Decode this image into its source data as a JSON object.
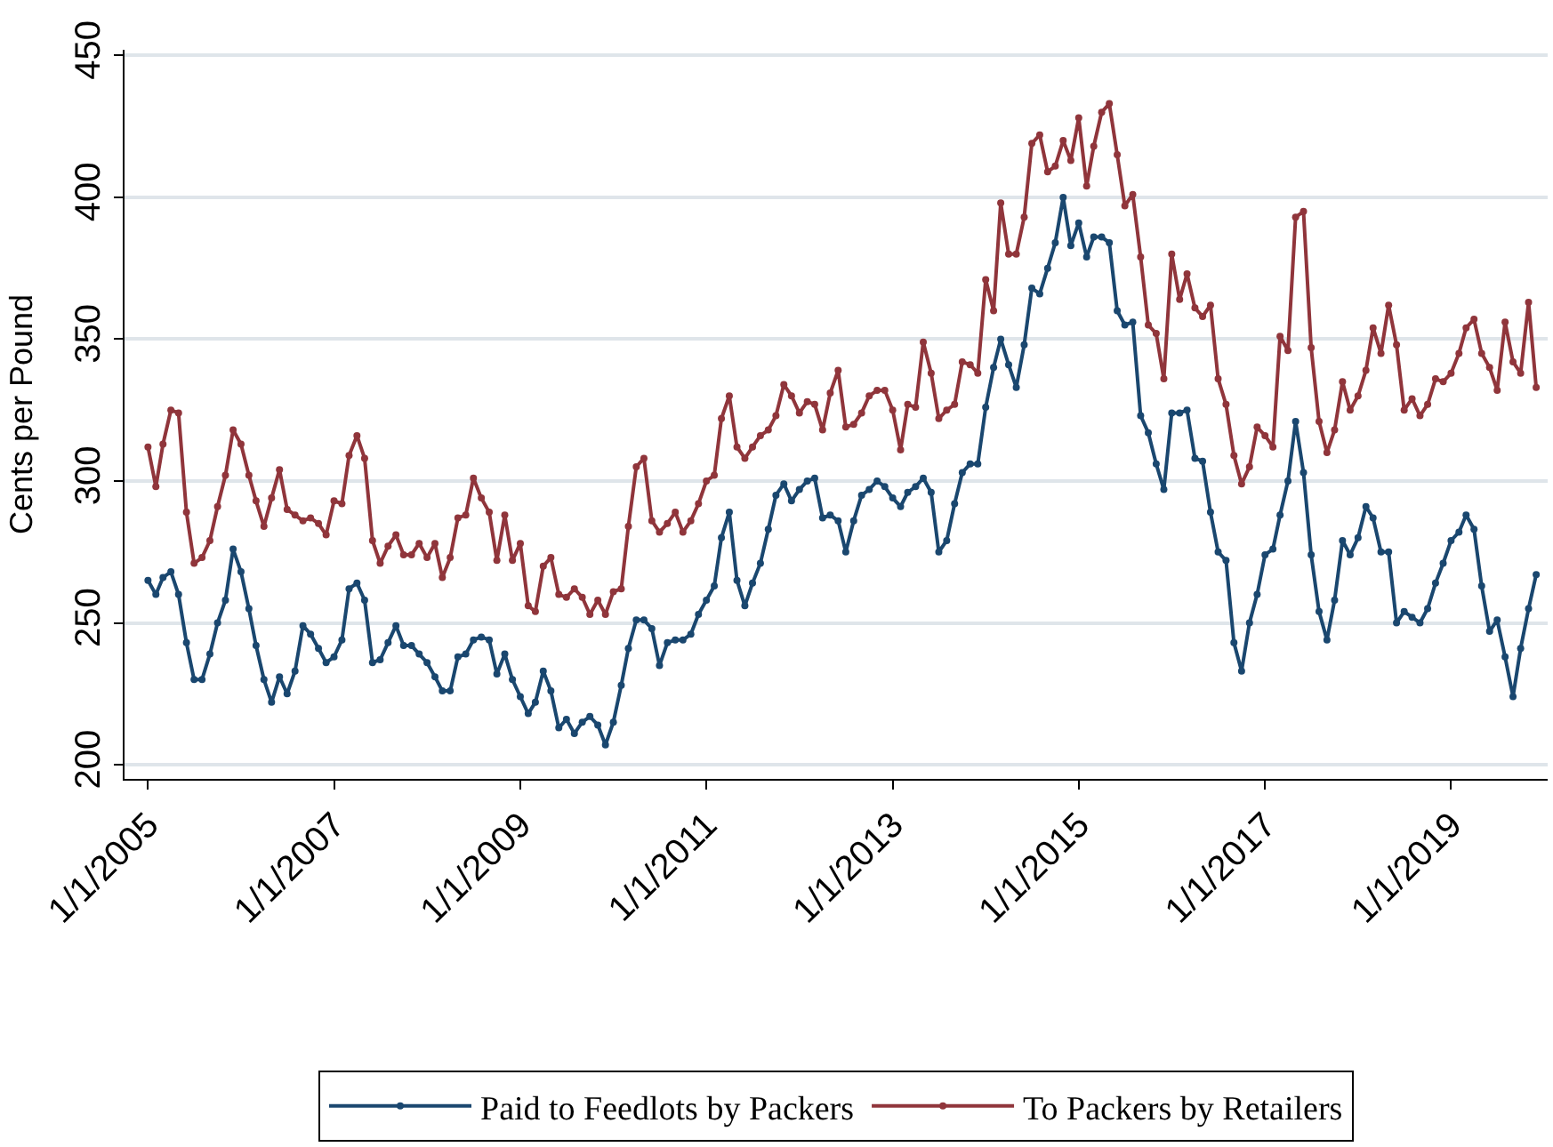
{
  "chart_data": {
    "type": "line",
    "ylabel": "Cents per Pound",
    "xlim": [
      "2004-10-01",
      "2020-01-15"
    ],
    "xticks": [
      {
        "value": "2005-01-01",
        "label": "1/1/2005"
      },
      {
        "value": "2007-01-01",
        "label": "1/1/2007"
      },
      {
        "value": "2009-01-01",
        "label": "1/1/2009"
      },
      {
        "value": "2011-01-01",
        "label": "1/1/2011"
      },
      {
        "value": "2013-01-01",
        "label": "1/1/2013"
      },
      {
        "value": "2015-01-01",
        "label": "1/1/2015"
      },
      {
        "value": "2017-01-01",
        "label": "1/1/2017"
      },
      {
        "value": "2019-01-01",
        "label": "1/1/2019"
      }
    ],
    "ylim": [
      195,
      452
    ],
    "yticks": [
      200,
      250,
      300,
      350,
      400,
      450
    ],
    "grid": "y",
    "legend": "bottom",
    "marker": "circle",
    "line_style": "solid",
    "x": [
      "2005-01",
      "2005-02",
      "2005-03",
      "2005-04",
      "2005-05",
      "2005-06",
      "2005-07",
      "2005-08",
      "2005-09",
      "2005-10",
      "2005-11",
      "2005-12",
      "2006-01",
      "2006-02",
      "2006-03",
      "2006-04",
      "2006-05",
      "2006-06",
      "2006-07",
      "2006-08",
      "2006-09",
      "2006-10",
      "2006-11",
      "2006-12",
      "2007-01",
      "2007-02",
      "2007-03",
      "2007-04",
      "2007-05",
      "2007-06",
      "2007-07",
      "2007-08",
      "2007-09",
      "2007-10",
      "2007-11",
      "2007-12",
      "2008-01",
      "2008-02",
      "2008-03",
      "2008-04",
      "2008-05",
      "2008-06",
      "2008-07",
      "2008-08",
      "2008-09",
      "2008-10",
      "2008-11",
      "2008-12",
      "2009-01",
      "2009-02",
      "2009-03",
      "2009-04",
      "2009-05",
      "2009-06",
      "2009-07",
      "2009-08",
      "2009-09",
      "2009-10",
      "2009-11",
      "2009-12",
      "2010-01",
      "2010-02",
      "2010-03",
      "2010-04",
      "2010-05",
      "2010-06",
      "2010-07",
      "2010-08",
      "2010-09",
      "2010-10",
      "2010-11",
      "2010-12",
      "2011-01",
      "2011-02",
      "2011-03",
      "2011-04",
      "2011-05",
      "2011-06",
      "2011-07",
      "2011-08",
      "2011-09",
      "2011-10",
      "2011-11",
      "2011-12",
      "2012-01",
      "2012-02",
      "2012-03",
      "2012-04",
      "2012-05",
      "2012-06",
      "2012-07",
      "2012-08",
      "2012-09",
      "2012-10",
      "2012-11",
      "2012-12",
      "2013-01",
      "2013-02",
      "2013-03",
      "2013-04",
      "2013-05",
      "2013-06",
      "2013-07",
      "2013-08",
      "2013-09",
      "2013-10",
      "2013-11",
      "2013-12",
      "2014-01",
      "2014-02",
      "2014-03",
      "2014-04",
      "2014-05",
      "2014-06",
      "2014-07",
      "2014-08",
      "2014-09",
      "2014-10",
      "2014-11",
      "2014-12",
      "2015-01",
      "2015-02",
      "2015-03",
      "2015-04",
      "2015-05",
      "2015-06",
      "2015-07",
      "2015-08",
      "2015-09",
      "2015-10",
      "2015-11",
      "2015-12",
      "2016-01",
      "2016-02",
      "2016-03",
      "2016-04",
      "2016-05",
      "2016-06",
      "2016-07",
      "2016-08",
      "2016-09",
      "2016-10",
      "2016-11",
      "2016-12",
      "2017-01",
      "2017-02",
      "2017-03",
      "2017-04",
      "2017-05",
      "2017-06",
      "2017-07",
      "2017-08",
      "2017-09",
      "2017-10",
      "2017-11",
      "2017-12",
      "2018-01",
      "2018-02",
      "2018-03",
      "2018-04",
      "2018-05",
      "2018-06",
      "2018-07",
      "2018-08",
      "2018-09",
      "2018-10",
      "2018-11",
      "2018-12",
      "2019-01",
      "2019-02",
      "2019-03",
      "2019-04",
      "2019-05",
      "2019-06",
      "2019-07",
      "2019-08",
      "2019-09",
      "2019-10",
      "2019-11",
      "2019-12"
    ],
    "series": [
      {
        "name": "Paid to Feedlots by Packers",
        "color": "#1a476f",
        "values": [
          265,
          260,
          266,
          268,
          260,
          243,
          230,
          230,
          239,
          250,
          258,
          276,
          268,
          255,
          242,
          230,
          222,
          231,
          225,
          233,
          249,
          246,
          241,
          236,
          238,
          244,
          262,
          264,
          258,
          236,
          237,
          243,
          249,
          242,
          242,
          239,
          236,
          231,
          226,
          226,
          238,
          239,
          244,
          245,
          244,
          232,
          239,
          230,
          224,
          218,
          222,
          233,
          226,
          213,
          216,
          211,
          215,
          217,
          214,
          207,
          215,
          228,
          241,
          251,
          251,
          248,
          235,
          243,
          244,
          244,
          246,
          253,
          258,
          263,
          280,
          289,
          265,
          256,
          264,
          271,
          283,
          295,
          299,
          293,
          297,
          300,
          301,
          287,
          288,
          286,
          275,
          286,
          295,
          297,
          300,
          298,
          294,
          291,
          296,
          298,
          301,
          296,
          275,
          279,
          292,
          303,
          306,
          306,
          326,
          340,
          350,
          341,
          333,
          348,
          368,
          366,
          375,
          384,
          400,
          383,
          391,
          379,
          386,
          386,
          384,
          360,
          355,
          356,
          323,
          317,
          306,
          297,
          324,
          324,
          325,
          308,
          307,
          289,
          275,
          272,
          243,
          233,
          250,
          260,
          274,
          276,
          288,
          300,
          321,
          303,
          274,
          254,
          244,
          258,
          279,
          274,
          280,
          291,
          287,
          275,
          275,
          250,
          254,
          252,
          250,
          255,
          264,
          271,
          279,
          282,
          288,
          283,
          263,
          247,
          251,
          238,
          224,
          241,
          255,
          267
        ]
      },
      {
        "name": "To Packers by Retailers",
        "color": "#90353b",
        "values": [
          312,
          298,
          313,
          325,
          324,
          289,
          271,
          273,
          279,
          291,
          302,
          318,
          313,
          302,
          293,
          284,
          294,
          304,
          290,
          288,
          286,
          287,
          285,
          281,
          293,
          292,
          309,
          316,
          308,
          279,
          271,
          277,
          281,
          274,
          274,
          278,
          273,
          278,
          266,
          273,
          287,
          288,
          301,
          294,
          289,
          272,
          288,
          272,
          278,
          256,
          254,
          270,
          273,
          260,
          259,
          262,
          259,
          253,
          258,
          253,
          261,
          262,
          284,
          305,
          308,
          286,
          282,
          285,
          289,
          282,
          286,
          292,
          300,
          302,
          322,
          330,
          312,
          308,
          312,
          316,
          318,
          323,
          334,
          330,
          324,
          328,
          327,
          318,
          331,
          339,
          319,
          320,
          324,
          330,
          332,
          332,
          325,
          311,
          327,
          326,
          349,
          338,
          322,
          325,
          327,
          342,
          341,
          338,
          371,
          360,
          398,
          380,
          380,
          393,
          419,
          422,
          409,
          411,
          420,
          413,
          428,
          404,
          418,
          430,
          433,
          415,
          397,
          401,
          379,
          355,
          352,
          336,
          380,
          364,
          373,
          361,
          358,
          362,
          336,
          327,
          309,
          299,
          305,
          319,
          316,
          312,
          351,
          346,
          393,
          395,
          347,
          321,
          310,
          318,
          335,
          325,
          330,
          339,
          354,
          345,
          362,
          348,
          325,
          329,
          323,
          327,
          336,
          335,
          338,
          345,
          354,
          357,
          345,
          340,
          332,
          356,
          342,
          338,
          363,
          333
        ]
      }
    ]
  }
}
